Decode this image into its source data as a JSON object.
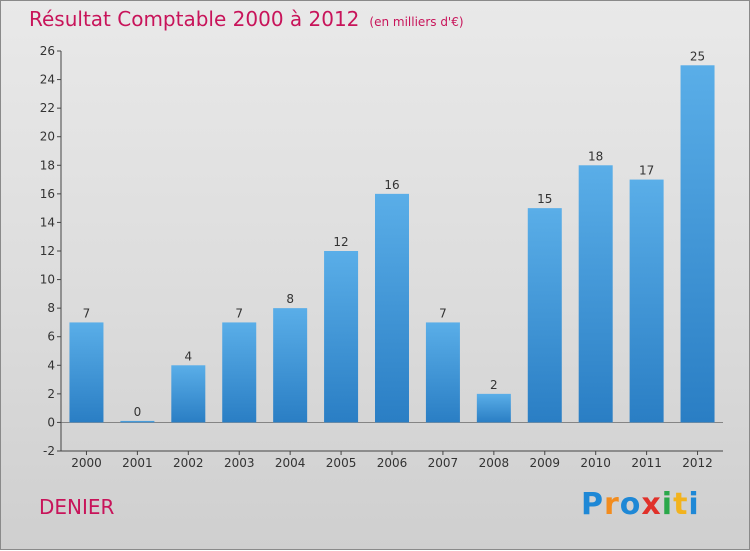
{
  "chart_data": {
    "type": "bar",
    "title": "Résultat Comptable 2000 à 2012",
    "subtitle": "(en milliers d'€)",
    "categories": [
      "2000",
      "2001",
      "2002",
      "2003",
      "2004",
      "2005",
      "2006",
      "2007",
      "2008",
      "2009",
      "2010",
      "2011",
      "2012"
    ],
    "values": [
      7,
      0,
      4,
      7,
      8,
      12,
      16,
      7,
      2,
      15,
      18,
      17,
      25
    ],
    "ylim": [
      -2,
      26
    ],
    "yticks": [
      -2,
      0,
      2,
      4,
      6,
      8,
      10,
      12,
      14,
      16,
      18,
      20,
      22,
      24,
      26
    ],
    "xlabel": "",
    "ylabel": "",
    "grid": false,
    "bar_color": "#3d8fd6"
  },
  "location": "DENIER",
  "logo": {
    "text": "Proxiti",
    "letters": [
      {
        "ch": "P",
        "color": "#1e88d6"
      },
      {
        "ch": "r",
        "color": "#f28c1e"
      },
      {
        "ch": "o",
        "color": "#1e88d6"
      },
      {
        "ch": "x",
        "color": "#e0312a"
      },
      {
        "ch": "i",
        "color": "#2aa84a"
      },
      {
        "ch": "t",
        "color": "#f2b31e"
      },
      {
        "ch": "i",
        "color": "#1e88d6"
      }
    ]
  }
}
